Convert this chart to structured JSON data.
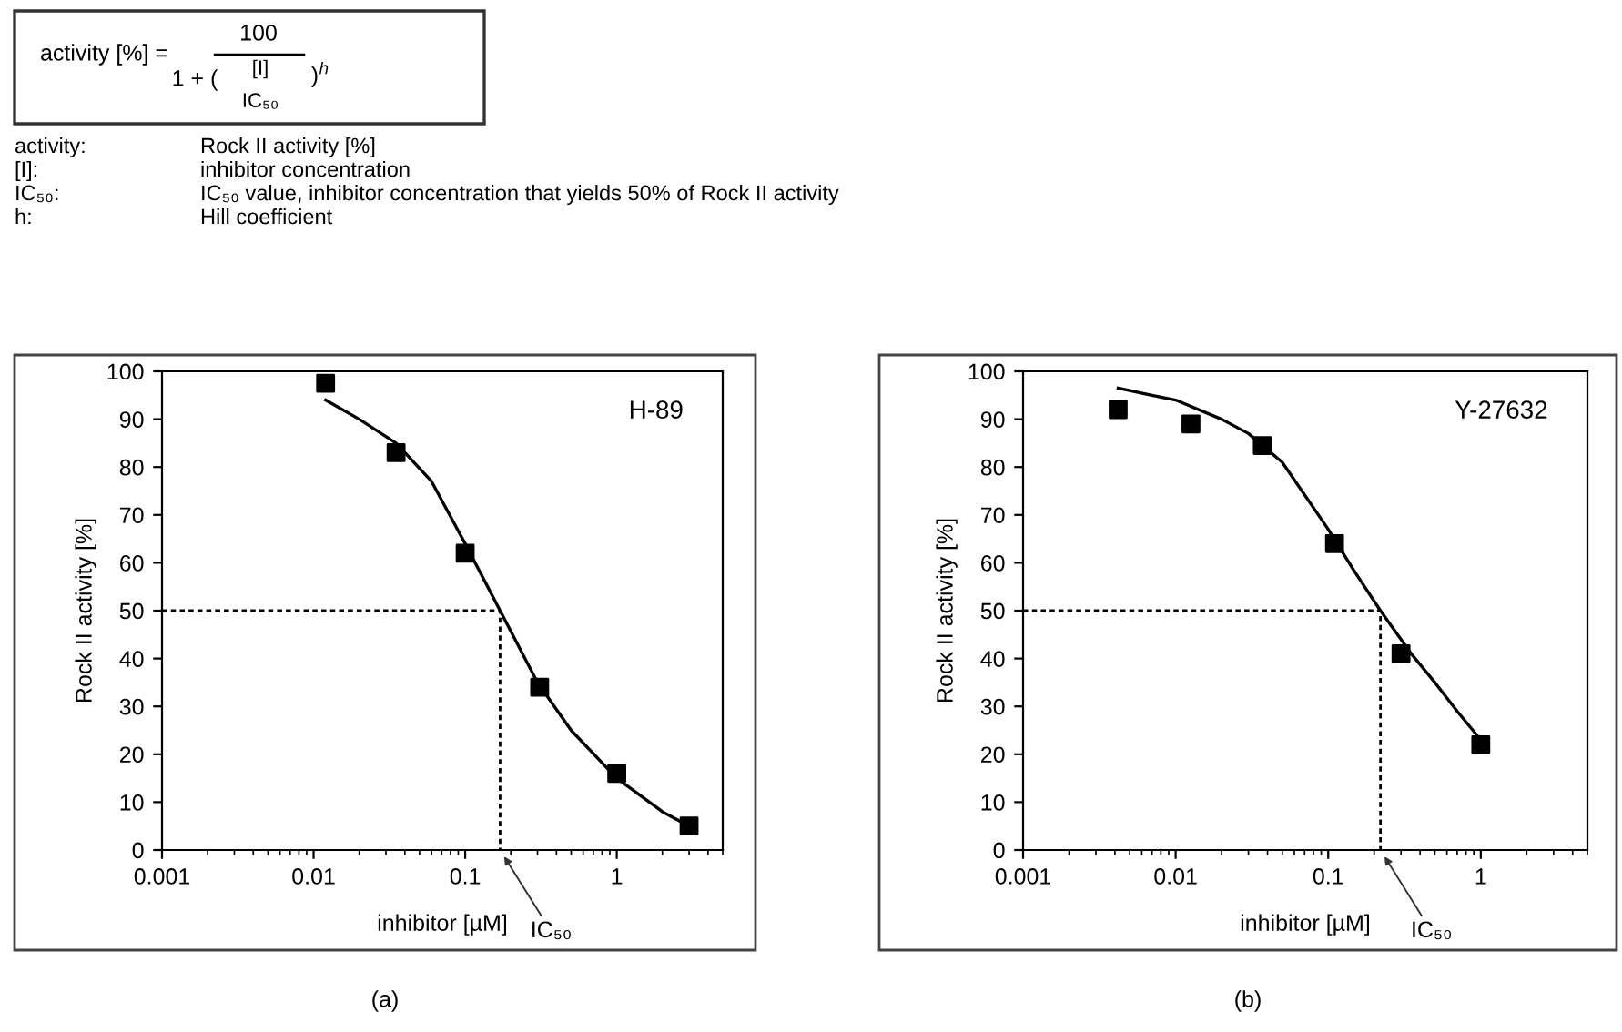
{
  "chart_data": [
    {
      "type": "other",
      "annotations": [
        "activity [%] =",
        "100",
        "1 + (",
        "[I]",
        "IC₅₀",
        ")$^{h}$",
        "activity:",
        "Rock II activity [%]",
        "[I]:",
        "inhibitor concentration",
        "IC₅₀:",
        "IC₅₀ value, inhibitor concentration that yields 50% of Rock II activity",
        "h:",
        "Hill coefficient"
      ]
    },
    {
      "type": "scatter",
      "title": "H-89",
      "xlabel": "inhibitor [µM]",
      "ylabel": "Rock II activity [%]",
      "log": "x",
      "xlim": [
        0.001,
        5
      ],
      "xticks": [
        0.001,
        0.01,
        0.1,
        1
      ],
      "ylim": [
        0,
        100
      ],
      "yticks": [
        0,
        10,
        20,
        30,
        40,
        50,
        60,
        70,
        80,
        90,
        100
      ],
      "grid": false,
      "series": [
        {
          "type": "scatter",
          "color": "#000000",
          "marker": "square",
          "x": [
            0.012,
            0.035,
            0.1,
            0.31,
            1,
            3
          ],
          "values": [
            97.5,
            83,
            62,
            34,
            16,
            5
          ]
        },
        {
          "type": "line",
          "color": "#000000",
          "line_style": "solid",
          "marker": "none",
          "x": [
            0.012,
            0.02,
            0.035,
            0.06,
            0.1,
            0.17,
            0.3,
            0.5,
            1,
            2,
            3
          ],
          "values": [
            94,
            90,
            85,
            77,
            64,
            50,
            35,
            25,
            15,
            8,
            5
          ]
        },
        {
          "type": "line",
          "color": "#000000",
          "line_style": "dashed",
          "marker": "none",
          "x": [
            0.001,
            0.17,
            0.17
          ],
          "values": [
            50,
            50,
            0
          ]
        }
      ],
      "annotations": [
        {
          "text": "IC₅₀",
          "x": 0.17,
          "y": 0
        },
        "(a)"
      ]
    },
    {
      "type": "scatter",
      "title": "Y-27632",
      "xlabel": "inhibitor [µM]",
      "ylabel": "Rock II activity [%]",
      "log": "x",
      "xlim": [
        0.001,
        5
      ],
      "xticks": [
        0.001,
        0.01,
        0.1,
        1
      ],
      "ylim": [
        0,
        100
      ],
      "yticks": [
        0,
        10,
        20,
        30,
        40,
        50,
        60,
        70,
        80,
        90,
        100
      ],
      "grid": false,
      "series": [
        {
          "type": "scatter",
          "color": "#000000",
          "marker": "square",
          "x": [
            0.0042,
            0.0126,
            0.037,
            0.11,
            0.3,
            1
          ],
          "values": [
            92,
            89,
            84.5,
            64,
            41,
            22
          ]
        },
        {
          "type": "line",
          "color": "#000000",
          "line_style": "solid",
          "marker": "none",
          "x": [
            0.0042,
            0.007,
            0.01,
            0.02,
            0.03,
            0.05,
            0.1,
            0.15,
            0.22,
            0.35,
            0.5,
            0.7,
            1
          ],
          "values": [
            96.5,
            95,
            94,
            90,
            87,
            81,
            67,
            58,
            50,
            41,
            35,
            29,
            23
          ]
        },
        {
          "type": "line",
          "color": "#000000",
          "line_style": "dashed",
          "marker": "none",
          "x": [
            0.001,
            0.22,
            0.22
          ],
          "values": [
            50,
            50,
            0
          ]
        }
      ],
      "annotations": [
        {
          "text": "IC₅₀",
          "x": 0.22,
          "y": 0
        },
        "(b)"
      ]
    }
  ]
}
